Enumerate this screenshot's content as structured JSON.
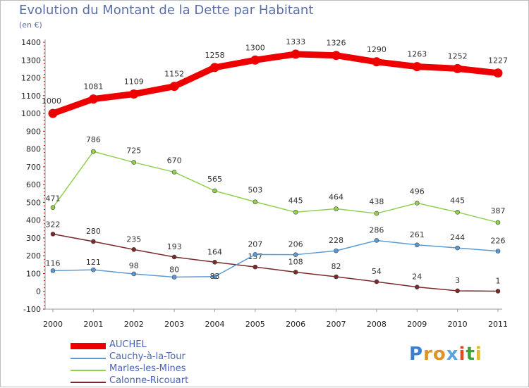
{
  "title": "Evolution du Montant de la Dette par Habitant",
  "subtitle": "(en €)",
  "logo": {
    "text": "Proxiti",
    "letter_colors": [
      "#3a7fd0",
      "#e0922a",
      "#e0922a",
      "#5aa3e0",
      "#e04a2a",
      "#3aa33a",
      "#e0b82a"
    ]
  },
  "chart_data": {
    "type": "line",
    "title": "Evolution du Montant de la Dette par Habitant",
    "ylabel": "(en €)",
    "xlabel": "",
    "x": [
      "2000",
      "2001",
      "2002",
      "2003",
      "2004",
      "2005",
      "2006",
      "2007",
      "2008",
      "2009",
      "2010",
      "2011"
    ],
    "ylim": [
      -100,
      1400
    ],
    "yticks": [
      "-100",
      "0",
      "100",
      "200",
      "300",
      "400",
      "500",
      "600",
      "700",
      "800",
      "900",
      "1000",
      "1100",
      "1200",
      "1300",
      "1400"
    ],
    "grid": false,
    "legend_position": "bottom-left",
    "series": [
      {
        "name": "AUCHEL",
        "color": "#ee0000",
        "values": [
          1000,
          1081,
          1109,
          1152,
          1258,
          1300,
          1333,
          1326,
          1290,
          1263,
          1252,
          1227
        ],
        "labels": [
          "1000",
          "1081",
          "1109",
          "1152",
          "1258",
          "1300",
          "1333",
          "1326",
          "1290",
          "1263",
          "1252",
          "1227"
        ]
      },
      {
        "name": "Cauchy-à-la-Tour",
        "color": "#5b9bd5",
        "values": [
          116,
          121,
          98,
          80,
          83,
          207,
          206,
          228,
          286,
          261,
          244,
          226
        ],
        "labels": [
          "116",
          "121",
          "98",
          "80",
          "83",
          "207",
          "206",
          "228",
          "286",
          "261",
          "244",
          "226"
        ]
      },
      {
        "name": "Marles-les-Mines",
        "color": "#92d050",
        "values": [
          471,
          786,
          725,
          670,
          565,
          503,
          445,
          464,
          438,
          496,
          445,
          387
        ],
        "labels": [
          "471",
          "786",
          "725",
          "670",
          "565",
          "503",
          "445",
          "464",
          "438",
          "496",
          "445",
          "387"
        ]
      },
      {
        "name": "Calonne-Ricouart",
        "color": "#7b2a2a",
        "values": [
          322,
          280,
          235,
          193,
          164,
          137,
          108,
          82,
          54,
          24,
          3,
          1
        ],
        "labels": [
          "322",
          "280",
          "235",
          "193",
          "164",
          "137",
          "108",
          "82",
          "54",
          "24",
          "3",
          "1"
        ]
      }
    ]
  }
}
